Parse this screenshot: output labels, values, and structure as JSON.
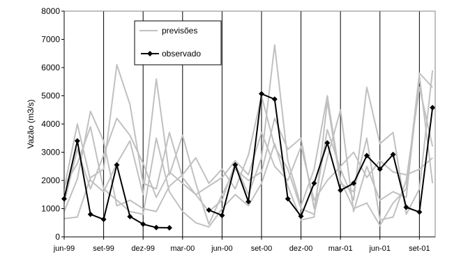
{
  "chart_data": {
    "type": "line",
    "ylabel": "Vazão (m3/s)",
    "ylim": [
      0,
      8000
    ],
    "yticks": [
      0,
      1000,
      2000,
      3000,
      4000,
      5000,
      6000,
      7000,
      8000
    ],
    "xtick_labels": [
      "jun-99",
      "set-99",
      "dez-99",
      "mar-00",
      "jun-00",
      "set-00",
      "dez-00",
      "mar-01",
      "jun-01",
      "set-01"
    ],
    "xlim": [
      0,
      28.2
    ],
    "grid": "vertical",
    "legend": {
      "placement": "top-center",
      "entries": [
        {
          "label": "previsões",
          "color": "#c0c0c0",
          "marker": "none"
        },
        {
          "label": "observado",
          "color": "#000000",
          "marker": "diamond"
        }
      ]
    },
    "series": [
      {
        "name": "observado",
        "color": "#000000",
        "marker": "diamond",
        "segments": [
          {
            "x": [
              0,
              1,
              2,
              3,
              4,
              5,
              6,
              7,
              8
            ],
            "y": [
              1350,
              3400,
              800,
              620,
              2550,
              720,
              450,
              330,
              320
            ]
          },
          {
            "x": [
              11,
              12,
              13,
              14,
              15,
              16,
              17,
              18,
              19,
              20,
              21,
              22,
              23,
              24,
              25,
              26,
              27,
              28
            ],
            "y": [
              950,
              760,
              2550,
              1250,
              5070,
              4880,
              1350,
              730,
              1900,
              3330,
              1650,
              1900,
              2880,
              2400,
              2920,
              1050,
              880,
              4580
            ]
          }
        ]
      },
      {
        "name": "",
        "role": "previsões",
        "color": "#c0c0c0",
        "x": [
          0,
          1,
          2,
          3,
          4,
          5,
          6,
          7,
          8,
          9,
          10,
          11,
          12,
          13,
          14,
          15,
          16,
          17,
          18,
          19,
          20,
          21,
          22,
          23,
          24,
          25,
          26,
          27,
          28
        ],
        "y": [
          650,
          700,
          2100,
          2400,
          6100,
          4700,
          1900,
          1700,
          3700,
          2100,
          1500,
          900,
          1300,
          2600,
          1500,
          2800,
          6800,
          2700,
          1100,
          2400,
          5000,
          2000,
          1000,
          1200,
          400,
          1200,
          1700,
          5800,
          5300
        ]
      },
      {
        "name": "",
        "role": "previsões",
        "color": "#c0c0c0",
        "x": [
          0,
          1,
          2,
          3,
          4,
          5,
          6,
          7,
          8,
          9,
          10,
          11,
          12,
          13,
          14,
          15,
          16,
          17,
          18,
          19,
          20,
          21,
          22,
          23,
          24,
          25,
          26,
          27,
          28
        ],
        "y": [
          1700,
          4000,
          2000,
          1600,
          2600,
          3400,
          1500,
          5600,
          2200,
          3600,
          1900,
          450,
          1500,
          2400,
          2000,
          2300,
          4200,
          3100,
          3500,
          1000,
          3800,
          2400,
          1300,
          5300,
          3300,
          3700,
          800,
          1700,
          5900
        ]
      },
      {
        "name": "",
        "role": "previsões",
        "color": "#c0c0c0",
        "x": [
          0,
          1,
          2,
          3,
          4,
          5,
          6,
          7,
          8,
          9,
          10,
          11,
          12,
          13,
          14,
          15,
          16,
          17,
          18,
          19,
          20,
          21,
          22,
          23,
          24,
          25,
          26,
          27,
          28
        ],
        "y": [
          900,
          2050,
          4450,
          3400,
          1100,
          1300,
          1000,
          900,
          1800,
          2200,
          2800,
          1900,
          2400,
          1700,
          2900,
          5000,
          3200,
          2400,
          1000,
          800,
          2800,
          4500,
          900,
          2500,
          1300,
          1600,
          1400,
          5700,
          1900
        ]
      },
      {
        "name": "",
        "role": "previsões",
        "color": "#c0c0c0",
        "x": [
          0,
          1,
          2,
          3,
          4,
          5,
          6,
          7,
          8,
          9,
          10,
          11,
          12,
          13,
          14,
          15,
          16,
          17,
          18,
          19,
          20,
          21,
          22,
          23,
          24,
          25,
          26,
          27,
          28
        ],
        "y": [
          1200,
          3100,
          1700,
          2900,
          4200,
          3600,
          2600,
          1400,
          2300,
          1900,
          1500,
          1800,
          2100,
          2700,
          2200,
          3700,
          2500,
          2000,
          3200,
          1300,
          2000,
          2500,
          3000,
          2100,
          2700,
          2300,
          2200,
          2400,
          2800
        ]
      },
      {
        "name": "",
        "role": "previsões",
        "color": "#c0c0c0",
        "x": [
          0,
          1,
          2,
          3,
          4,
          5,
          6,
          7,
          8,
          9,
          10,
          11,
          12,
          13,
          14,
          15,
          16,
          17,
          18,
          19,
          20,
          21,
          22,
          23,
          24,
          25,
          26,
          27,
          28
        ],
        "y": [
          1800,
          2600,
          3900,
          1700,
          1300,
          900,
          800,
          3500,
          1600,
          900,
          500,
          350,
          1000,
          1500,
          1100,
          1900,
          3300,
          1800,
          600,
          700,
          4800,
          1900,
          1600,
          3500,
          600,
          700,
          2000,
          5300,
          3200
        ]
      }
    ]
  }
}
